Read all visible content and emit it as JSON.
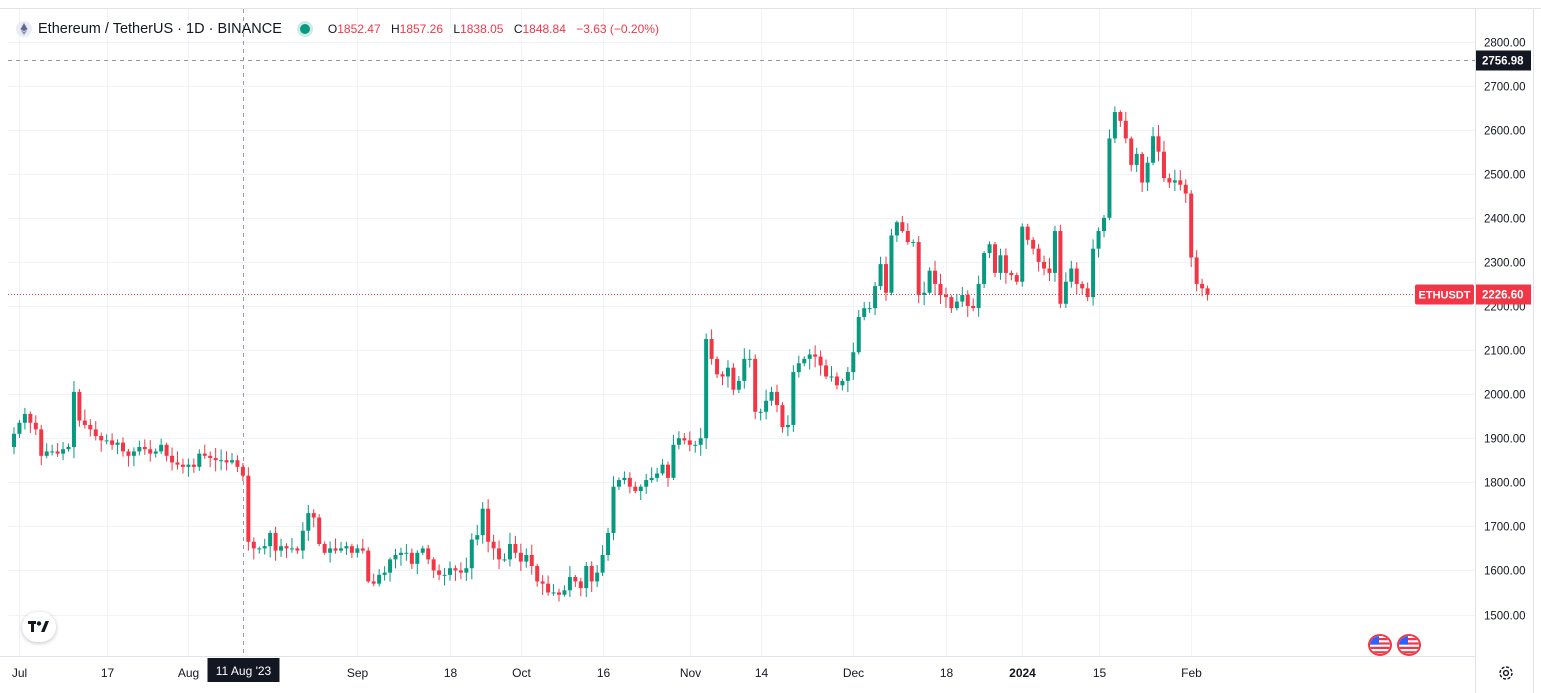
{
  "symbol": {
    "title": "Ethereum / TetherUS · 1D · BINANCE",
    "open_label": "O",
    "open": "1852.47",
    "high_label": "H",
    "high": "1857.26",
    "low_label": "L",
    "low": "1838.05",
    "close_label": "C",
    "close": "1848.84",
    "change": "−3.63 (−0.20%)",
    "status": "market-open"
  },
  "colors": {
    "up": "#089981",
    "down": "#f23645",
    "grid": "#f0f3fa",
    "text": "#131722",
    "crosshair_label_bg": "#131722"
  },
  "icons": {
    "symbol": "ethereum-icon",
    "logo": "tradingview-logo-icon",
    "events": "us-flag-icon",
    "settings": "gear-icon"
  },
  "crosshair": {
    "date_label": "11 Aug '23",
    "price_label": "2756.98"
  },
  "price_tag": {
    "ticker": "ETHUSDT",
    "price": "2226.60"
  },
  "chart_data": {
    "type": "candlestick",
    "title": "Ethereum / TetherUS · 1D · BINANCE",
    "xlabel": "",
    "ylabel": "",
    "ylim": [
      1460,
      2840
    ],
    "grid": true,
    "y_ticks": [
      "1500.00",
      "1600.00",
      "1700.00",
      "1800.00",
      "1900.00",
      "2000.00",
      "2100.00",
      "2200.00",
      "2300.00",
      "2400.00",
      "2500.00",
      "2600.00",
      "2700.00",
      "2800.00"
    ],
    "x_ticks": [
      {
        "label": "Jul",
        "date": "2023-07-01"
      },
      {
        "label": "17",
        "date": "2023-07-17"
      },
      {
        "label": "Aug",
        "date": "2023-08-01"
      },
      {
        "label": "Sep",
        "date": "2023-09-01"
      },
      {
        "label": "18",
        "date": "2023-09-18"
      },
      {
        "label": "Oct",
        "date": "2023-10-01"
      },
      {
        "label": "16",
        "date": "2023-10-16"
      },
      {
        "label": "Nov",
        "date": "2023-11-01"
      },
      {
        "label": "14",
        "date": "2023-11-14"
      },
      {
        "label": "Dec",
        "date": "2023-12-01"
      },
      {
        "label": "18",
        "date": "2023-12-18"
      },
      {
        "label": "2024",
        "date": "2024-01-01"
      },
      {
        "label": "15",
        "date": "2024-01-15"
      },
      {
        "label": "Feb",
        "date": "2024-02-01"
      }
    ],
    "start_date": "2023-06-30",
    "close": [
      1910,
      1935,
      1955,
      1935,
      1920,
      1860,
      1870,
      1870,
      1865,
      1875,
      1880,
      2005,
      1940,
      1930,
      1920,
      1905,
      1895,
      1895,
      1885,
      1890,
      1870,
      1860,
      1870,
      1880,
      1875,
      1865,
      1870,
      1885,
      1860,
      1845,
      1840,
      1835,
      1840,
      1835,
      1865,
      1860,
      1855,
      1850,
      1850,
      1845,
      1850,
      1835,
      1815,
      1665,
      1650,
      1650,
      1655,
      1685,
      1645,
      1655,
      1650,
      1650,
      1645,
      1690,
      1730,
      1720,
      1660,
      1640,
      1650,
      1645,
      1650,
      1655,
      1640,
      1650,
      1645,
      1575,
      1570,
      1590,
      1595,
      1625,
      1635,
      1640,
      1640,
      1615,
      1640,
      1650,
      1625,
      1600,
      1590,
      1590,
      1605,
      1600,
      1595,
      1605,
      1670,
      1680,
      1740,
      1665,
      1650,
      1625,
      1625,
      1660,
      1640,
      1620,
      1635,
      1610,
      1575,
      1570,
      1550,
      1550,
      1545,
      1555,
      1585,
      1575,
      1560,
      1610,
      1575,
      1595,
      1635,
      1685,
      1790,
      1805,
      1810,
      1790,
      1780,
      1790,
      1805,
      1810,
      1820,
      1840,
      1810,
      1885,
      1900,
      1895,
      1885,
      1885,
      1900,
      2125,
      2080,
      2045,
      2040,
      2060,
      2010,
      2030,
      2080,
      2080,
      1960,
      1960,
      1985,
      2005,
      1975,
      1925,
      1930,
      2050,
      2070,
      2080,
      2090,
      2085,
      2065,
      2040,
      2040,
      2020,
      2030,
      2050,
      2095,
      2175,
      2195,
      2195,
      2245,
      2295,
      2230,
      2360,
      2390,
      2370,
      2345,
      2345,
      2225,
      2230,
      2280,
      2250,
      2225,
      2220,
      2195,
      2210,
      2225,
      2200,
      2195,
      2250,
      2320,
      2340,
      2275,
      2315,
      2275,
      2270,
      2255,
      2380,
      2350,
      2330,
      2300,
      2285,
      2275,
      2370,
      2205,
      2255,
      2285,
      2250,
      2240,
      2220,
      2330,
      2370,
      2400,
      2580,
      2640,
      2620,
      2580,
      2520,
      2545,
      2480,
      2525,
      2585,
      2550,
      2490,
      2480,
      2485,
      2475,
      2455,
      2310,
      2250,
      2240,
      2226
    ]
  }
}
